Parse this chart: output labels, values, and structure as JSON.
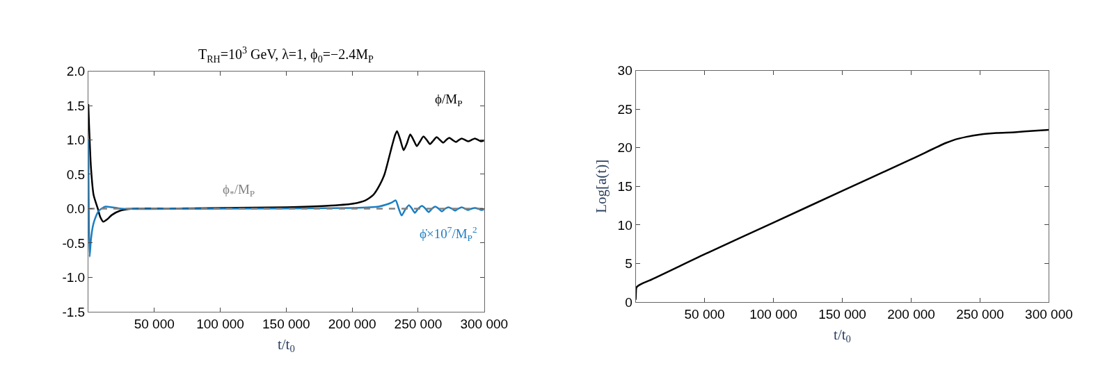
{
  "chart_data": [
    {
      "type": "line",
      "title": "T$_{RH}$=10$^{3}$ GeV, λ=1, ϕ$_{0}$=−2.4M$_{P}$",
      "xlabel": "t/t$_{0}$",
      "xlim": [
        0,
        300000
      ],
      "xticks": [
        {
          "value": 50000,
          "label": "50 000"
        },
        {
          "value": 100000,
          "label": "100 000"
        },
        {
          "value": 150000,
          "label": "150 000"
        },
        {
          "value": 200000,
          "label": "200 000"
        },
        {
          "value": 250000,
          "label": "250 000"
        },
        {
          "value": 300000,
          "label": "300 000"
        }
      ],
      "ylim": [
        -1.5,
        2.0
      ],
      "yticks": [
        {
          "value": -1.5,
          "label": "-1.5"
        },
        {
          "value": -1.0,
          "label": "-1.0"
        },
        {
          "value": -0.5,
          "label": "-0.5"
        },
        {
          "value": 0,
          "label": "0.0"
        },
        {
          "value": 0.5,
          "label": "0.5"
        },
        {
          "value": 1.0,
          "label": "1.0"
        },
        {
          "value": 1.5,
          "label": "1.5"
        },
        {
          "value": 2.0,
          "label": "2.0"
        }
      ],
      "series": [
        {
          "name": "ϕ/M$_{P}$",
          "color": "#000000",
          "x": [
            0,
            600,
            2000,
            4000,
            7200,
            9000,
            11300,
            14000,
            18000,
            24000,
            34000,
            60000,
            100000,
            150000,
            180000,
            200000,
            210000,
            216000,
            221000,
            224500,
            228000,
            230000,
            232500,
            234000,
            236500,
            239000,
            241500,
            244000,
            246500,
            249000,
            251500,
            254000,
            256500,
            259000,
            261500,
            264000,
            266500,
            269000,
            271300,
            273600,
            276000,
            278600,
            281000,
            283000,
            285500,
            288000,
            290500,
            293000,
            295500,
            297500,
            300000
          ],
          "values": [
            1.52,
            1.2,
            0.6,
            0.2,
            0,
            -0.12,
            -0.19,
            -0.16,
            -0.09,
            -0.03,
            0,
            0,
            0.01,
            0.02,
            0.04,
            0.07,
            0.12,
            0.2,
            0.35,
            0.5,
            0.75,
            0.9,
            1.07,
            1.13,
            1.0,
            0.85,
            0.95,
            1.08,
            1.0,
            0.91,
            0.98,
            1.05,
            1.0,
            0.94,
            0.99,
            1.04,
            1.0,
            0.96,
            1.0,
            1.03,
            1.0,
            0.97,
            1.0,
            1.02,
            1.0,
            0.98,
            1.0,
            1.02,
            1.0,
            0.98,
            0.99
          ]
        },
        {
          "name": "ϕ̇×10$^{7}$/M$_{P}$$^{2}$",
          "color": "#1b7ec2",
          "x": [
            0,
            300,
            1000,
            2000,
            3500,
            5000,
            8000,
            13000,
            18000,
            25000,
            100000,
            200000,
            220000,
            226000,
            230000,
            233000,
            235300,
            237500,
            240000,
            243000,
            245300,
            247500,
            250000,
            253000,
            255500,
            258000,
            260500,
            263000,
            265500,
            268000,
            270500,
            273000,
            275500,
            278000,
            280500,
            283000,
            285500,
            288000,
            290500,
            293000,
            295500,
            298000,
            300000
          ],
          "values": [
            1.0,
            0.2,
            -0.7,
            -0.45,
            -0.25,
            -0.15,
            -0.03,
            0.03,
            0.02,
            0,
            0,
            0.01,
            0.03,
            0.06,
            0.09,
            0.12,
            0.0,
            -0.1,
            -0.02,
            0.05,
            0.0,
            -0.06,
            0.0,
            0.04,
            0.0,
            -0.05,
            0.0,
            0.03,
            0.0,
            -0.04,
            0.0,
            0.02,
            0.0,
            -0.03,
            0.0,
            0.02,
            0.0,
            -0.02,
            0.0,
            0.01,
            0.0,
            -0.02,
            -0.01
          ]
        }
      ],
      "ref_lines": [
        {
          "axis": "y",
          "value": 0,
          "label": "ϕ$_{*}$/M$_{P}$",
          "color": "#808080",
          "line_style": "dashed"
        }
      ]
    },
    {
      "type": "line",
      "xlabel": "t/t$_{0}$",
      "ylabel": "Log[a(t)]",
      "xlim": [
        0,
        300000
      ],
      "xticks": [
        {
          "value": 50000,
          "label": "50 000"
        },
        {
          "value": 100000,
          "label": "100 000"
        },
        {
          "value": 150000,
          "label": "150 000"
        },
        {
          "value": 200000,
          "label": "200 000"
        },
        {
          "value": 250000,
          "label": "250 000"
        },
        {
          "value": 300000,
          "label": "300 000"
        }
      ],
      "ylim": [
        0,
        30
      ],
      "yticks": [
        0,
        5,
        10,
        15,
        20,
        25,
        30
      ],
      "series": [
        {
          "color": "#000000",
          "x": [
            0,
            200,
            400,
            1000,
            2500,
            5700,
            10000,
            50000,
            100000,
            150000,
            200000,
            225000,
            231000,
            240000,
            250000,
            262000,
            275000,
            290000,
            300000
          ],
          "values": [
            0.3,
            1.2,
            1.8,
            2.0,
            2.2,
            2.5,
            2.8,
            6.2,
            10.3,
            14.4,
            18.5,
            20.6,
            21.0,
            21.4,
            21.7,
            21.9,
            22.0,
            22.2,
            22.3
          ]
        }
      ]
    }
  ]
}
